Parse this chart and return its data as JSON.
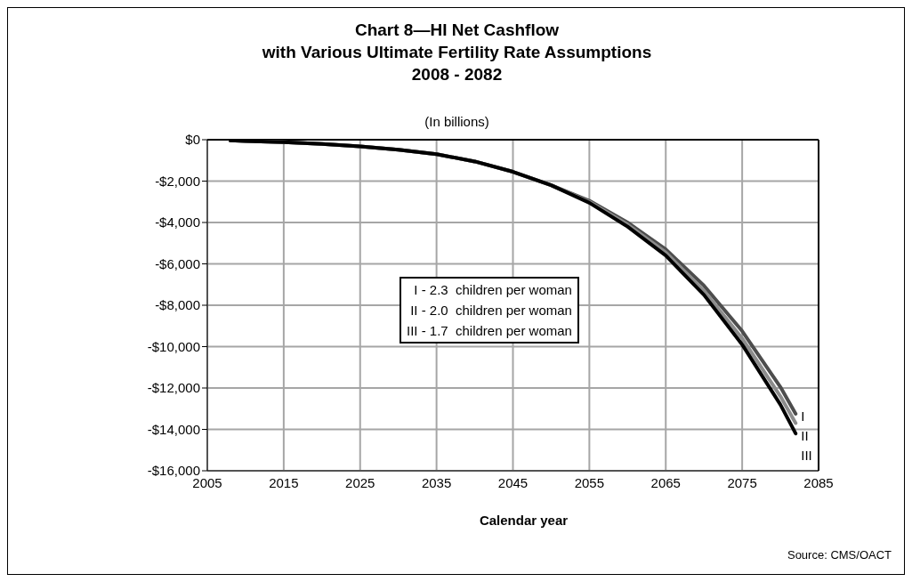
{
  "chart_data": {
    "type": "line",
    "title": "Chart 8—HI Net Cashflow\nwith Various Ultimate Fertility Rate Assumptions\n2008 - 2082",
    "subtitle": "(In billions)",
    "xlabel": "Calendar year",
    "x": [
      2008,
      2010,
      2015,
      2020,
      2025,
      2030,
      2035,
      2040,
      2045,
      2050,
      2055,
      2060,
      2065,
      2070,
      2075,
      2080,
      2082
    ],
    "series": [
      {
        "name": "I",
        "color": "#4d4d4d",
        "values": [
          -30,
          -60,
          -120,
          -200,
          -320,
          -480,
          -700,
          -1050,
          -1550,
          -2200,
          -2950,
          -4000,
          -5300,
          -7050,
          -9250,
          -11950,
          -13250
        ]
      },
      {
        "name": "II",
        "color": "#8c8c8c",
        "values": [
          -30,
          -60,
          -120,
          -200,
          -320,
          -480,
          -700,
          -1050,
          -1550,
          -2200,
          -3000,
          -4100,
          -5450,
          -7300,
          -9600,
          -12400,
          -13700
        ]
      },
      {
        "name": "III",
        "color": "#000000",
        "values": [
          -30,
          -60,
          -120,
          -200,
          -320,
          -480,
          -700,
          -1050,
          -1550,
          -2200,
          -3050,
          -4200,
          -5600,
          -7500,
          -9900,
          -12800,
          -14200
        ]
      }
    ],
    "xlim": [
      2005,
      2085
    ],
    "xticks": [
      2005,
      2015,
      2025,
      2035,
      2045,
      2055,
      2065,
      2075,
      2085
    ],
    "ylim": [
      -16000,
      0
    ],
    "yticks": [
      {
        "value": 0,
        "label": "$0"
      },
      {
        "value": -2000,
        "label": "-$2,000"
      },
      {
        "value": -4000,
        "label": "-$4,000"
      },
      {
        "value": -6000,
        "label": "-$6,000"
      },
      {
        "value": -8000,
        "label": "-$8,000"
      },
      {
        "value": -10000,
        "label": "-$10,000"
      },
      {
        "value": -12000,
        "label": "-$12,000"
      },
      {
        "value": -14000,
        "label": "-$14,000"
      },
      {
        "value": -16000,
        "label": "-$16,000"
      }
    ],
    "grid": true,
    "marker": "none",
    "line_style": "solid",
    "annotations": [
      "I - 2.3  children per woman",
      "II - 2.0  children per woman",
      "III - 1.7  children per woman",
      "Source: CMS/OACT"
    ]
  }
}
